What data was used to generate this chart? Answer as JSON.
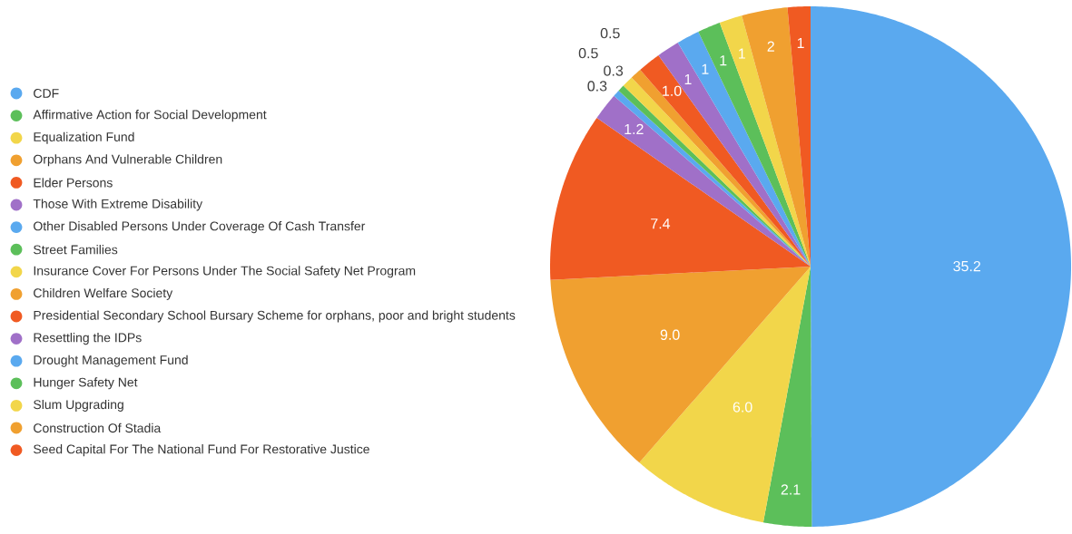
{
  "chart_data": {
    "type": "pie",
    "categories": [
      "CDF",
      "Affirmative Action for Social Development",
      "Equalization Fund",
      "Orphans And Vulnerable Children",
      "Elder Persons",
      "Those With Extreme Disability",
      "Other Disabled Persons Under Coverage Of Cash Transfer",
      "Street Families",
      "Insurance Cover For Persons Under The Social Safety Net Program",
      "Children Welfare Society",
      "Presidential Secondary School Bursary Scheme for orphans, poor and bright students",
      "Resettling the IDPs",
      "Drought Management Fund",
      "Hunger Safety Net",
      "Slum Upgrading",
      "Construction Of Stadia",
      "Seed Capital For The National Fund For Restorative Justice"
    ],
    "values": [
      35.2,
      2.1,
      6.0,
      9.0,
      7.4,
      1.2,
      0.3,
      0.3,
      0.5,
      0.5,
      1.0,
      1,
      1,
      1,
      1,
      2,
      1
    ],
    "value_labels": [
      "35.2",
      "2.1",
      "6.0",
      "9.0",
      "7.4",
      "1.2",
      "0.3",
      "0.3",
      "0.5",
      "0.5",
      "1.0",
      "1",
      "1",
      "1",
      "1",
      "2",
      "1"
    ],
    "colors": [
      "#5aa9ef",
      "#5cbf5a",
      "#f2d64a",
      "#f0a030",
      "#f05a22",
      "#a070c8",
      "#5aa9ef",
      "#5cbf5a",
      "#f2d64a",
      "#f0a030",
      "#f05a22",
      "#a070c8",
      "#5aa9ef",
      "#5cbf5a",
      "#f2d64a",
      "#f0a030",
      "#f05a22"
    ],
    "legend": "left"
  }
}
